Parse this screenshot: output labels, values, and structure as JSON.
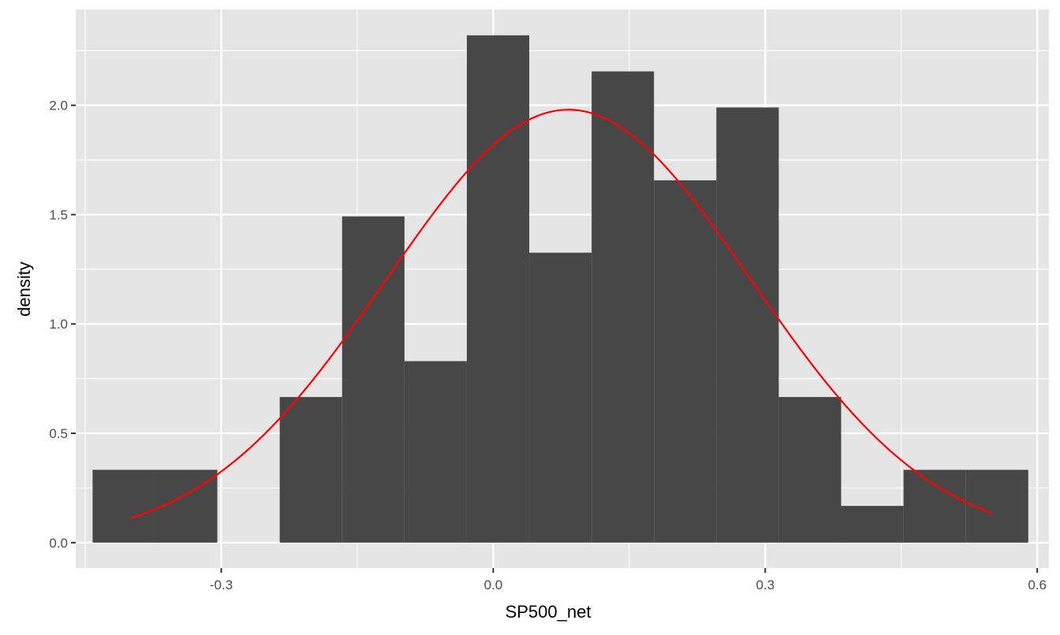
{
  "chart_data": {
    "type": "bar",
    "xlabel": "SP500_net",
    "ylabel": "density",
    "xlim": [
      -0.4605,
      0.6129
    ],
    "ylim": [
      -0.1161,
      2.4383
    ],
    "x_ticks": [
      -0.3,
      0.0,
      0.3,
      0.6
    ],
    "x_tick_labels": [
      "-0.3",
      "0.0",
      "0.3",
      "0.6"
    ],
    "y_ticks": [
      0.0,
      0.5,
      1.0,
      1.5,
      2.0
    ],
    "y_tick_labels": [
      "0.0",
      "0.5",
      "1.0",
      "1.5",
      "2.0"
    ],
    "grid": true,
    "bins": [
      {
        "x0": -0.4419,
        "x1": -0.3731,
        "density": 0.333
      },
      {
        "x0": -0.3731,
        "x1": -0.3043,
        "density": 0.333
      },
      {
        "x0": -0.3043,
        "x1": -0.2355,
        "density": 0.0
      },
      {
        "x0": -0.2355,
        "x1": -0.1667,
        "density": 0.666
      },
      {
        "x0": -0.1667,
        "x1": -0.0979,
        "density": 1.492
      },
      {
        "x0": -0.0979,
        "x1": -0.0291,
        "density": 0.83
      },
      {
        "x0": -0.0291,
        "x1": 0.0397,
        "density": 2.32
      },
      {
        "x0": 0.0397,
        "x1": 0.1085,
        "density": 1.326
      },
      {
        "x0": 0.1085,
        "x1": 0.1773,
        "density": 2.155
      },
      {
        "x0": 0.1773,
        "x1": 0.2461,
        "density": 1.657
      },
      {
        "x0": 0.2461,
        "x1": 0.3149,
        "density": 1.99
      },
      {
        "x0": 0.3149,
        "x1": 0.3837,
        "density": 0.666
      },
      {
        "x0": 0.3837,
        "x1": 0.4525,
        "density": 0.168
      },
      {
        "x0": 0.4525,
        "x1": 0.5213,
        "density": 0.333
      },
      {
        "x0": 0.5213,
        "x1": 0.5901,
        "density": 0.333
      }
    ],
    "density_curve": {
      "mean": 0.083,
      "sd": 0.2015,
      "x_range": [
        -0.4,
        0.55
      ]
    },
    "colors": {
      "panel": "#e5e5e5",
      "grid": "#ffffff",
      "bar": "#474747",
      "curve": "#ff0000"
    }
  }
}
